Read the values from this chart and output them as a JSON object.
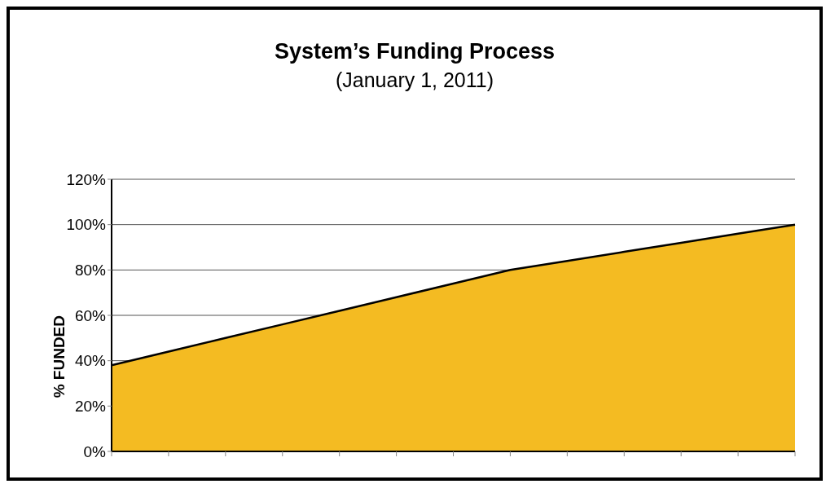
{
  "chart_data": {
    "type": "area",
    "title": "System’s Funding Process",
    "subtitle": "(January 1, 2011)",
    "ylabel": "% FUNDED",
    "categories": [
      null,
      null,
      null,
      null,
      null,
      null,
      null,
      null,
      null,
      null,
      null,
      null,
      null
    ],
    "series": [
      {
        "color": "#f4bb22",
        "values": [
          38,
          44,
          50,
          56,
          62,
          68,
          74,
          80,
          84,
          88,
          92,
          96,
          100
        ]
      }
    ],
    "ylim": [
      0,
      120
    ],
    "yticks": [
      {
        "value": 0,
        "label": "0%"
      },
      {
        "value": 20,
        "label": "20%"
      },
      {
        "value": 40,
        "label": "40%"
      },
      {
        "value": 60,
        "label": "60%"
      },
      {
        "value": 80,
        "label": "80%"
      },
      {
        "value": 100,
        "label": "100%"
      },
      {
        "value": 120,
        "label": "120%"
      }
    ],
    "grid": "y",
    "legend": false
  }
}
